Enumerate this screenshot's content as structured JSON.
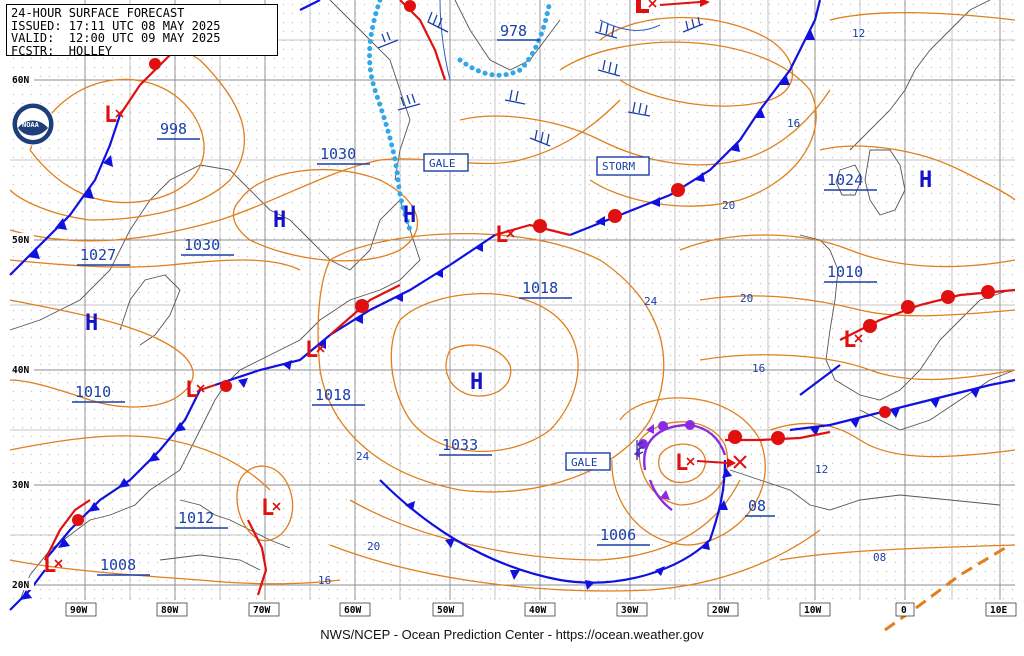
{
  "header": {
    "title": "24-HOUR SURFACE FORECAST",
    "issued": "ISSUED: 17:11 UTC 08 MAY 2025",
    "valid": "VALID:  12:00 UTC 09 MAY 2025",
    "forecaster": "FCSTR:  HOLLEY"
  },
  "footer": "NWS/NCEP - Ocean Prediction Center - https://ocean.weather.gov",
  "logo": {
    "icon": "noaa-logo",
    "text": "NOAA"
  },
  "latitude_labels": [
    "60N",
    "50N",
    "40N",
    "30N",
    "20N"
  ],
  "longitude_labels": [
    "90W",
    "80W",
    "70W",
    "60W",
    "50W",
    "40W",
    "30W",
    "20W",
    "10W",
    "0",
    "10E"
  ],
  "pressure_labels": [
    "978",
    "998",
    "1030",
    "1030",
    "1027",
    "1024",
    "1010",
    "1018",
    "1018",
    "1010",
    "1033",
    "1012",
    "1008",
    "1006",
    "08"
  ],
  "thickness_labels": [
    "12",
    "16",
    "20",
    "24",
    "20",
    "16",
    "12",
    "24",
    "20",
    "16",
    "08"
  ],
  "warning_labels": [
    "GALE",
    "STORM",
    "GALE"
  ],
  "centers": {
    "highs": [
      "H",
      "H",
      "H",
      "H",
      "H"
    ],
    "lows": [
      "L",
      "L",
      "L",
      "L",
      "L",
      "L",
      "L",
      "L"
    ]
  },
  "colors": {
    "isobar": "#1a3fa8",
    "thickness": "#e07f1c",
    "cold_front": "#1010e0",
    "warm_front": "#e01010",
    "occluded_front": "#8a2be2",
    "ice_edge": "#33a6e8",
    "grid": "#8c8c8c",
    "high": "#1212c8",
    "low": "#e01010"
  }
}
